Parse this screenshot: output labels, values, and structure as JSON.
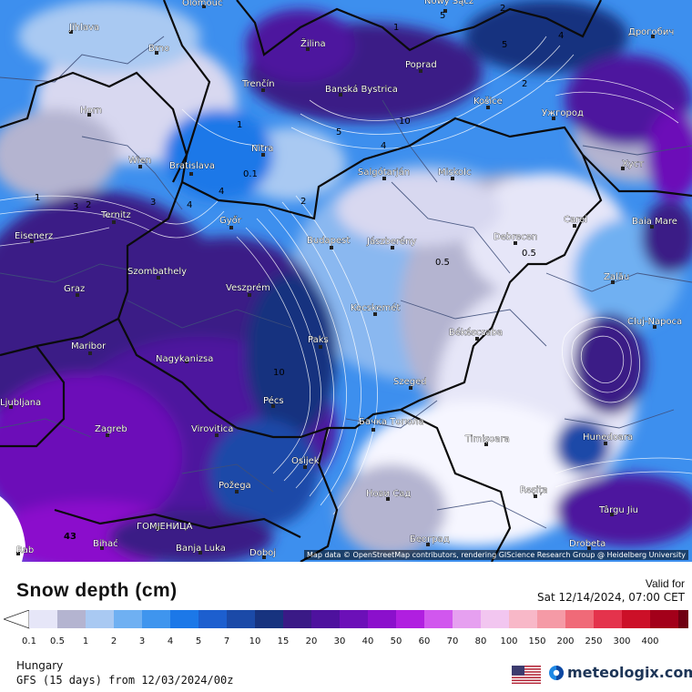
{
  "map": {
    "attribution": "Map data © OpenStreetMap contributors, rendering GIScience Research Group @ Heidelberg University",
    "cities": [
      {
        "name": "Olomouc"
      },
      {
        "name": "Nowy Sącz"
      },
      {
        "name": "Jihlava"
      },
      {
        "name": "Дрогобич"
      },
      {
        "name": "Brno"
      },
      {
        "name": "Žilina"
      },
      {
        "name": "Poprad"
      },
      {
        "name": "Trenčín"
      },
      {
        "name": "Banská Bystrica"
      },
      {
        "name": "Horn"
      },
      {
        "name": "Košice"
      },
      {
        "name": "Ужгород"
      },
      {
        "name": "Nitra"
      },
      {
        "name": "Wien"
      },
      {
        "name": "Bratislava"
      },
      {
        "name": "Salgótarján"
      },
      {
        "name": "Miskolc"
      },
      {
        "name": "Хуст"
      },
      {
        "name": "Ternitz"
      },
      {
        "name": "Győr"
      },
      {
        "name": "Carei"
      },
      {
        "name": "Baia Mare"
      },
      {
        "name": "Eisenerz"
      },
      {
        "name": "Budapest"
      },
      {
        "name": "Jászberény"
      },
      {
        "name": "Debrecen"
      },
      {
        "name": "Szombathely"
      },
      {
        "name": "Zalău"
      },
      {
        "name": "Graz"
      },
      {
        "name": "Veszprém"
      },
      {
        "name": "Kecskemét"
      },
      {
        "name": "Cluj-Napoca"
      },
      {
        "name": "Maribor"
      },
      {
        "name": "Paks"
      },
      {
        "name": "Békéscsaba"
      },
      {
        "name": "Nagykanizsa"
      },
      {
        "name": "Szeged"
      },
      {
        "name": "Pécs"
      },
      {
        "name": "Ljubljana"
      },
      {
        "name": "Zagreb"
      },
      {
        "name": "Virovitica"
      },
      {
        "name": "Бачка Топола"
      },
      {
        "name": "Timișoara"
      },
      {
        "name": "Hunedoara"
      },
      {
        "name": "Osijek"
      },
      {
        "name": "Požega"
      },
      {
        "name": "Нови Сад"
      },
      {
        "name": "Reșița"
      },
      {
        "name": "Târgu Jiu"
      },
      {
        "name": "ГОМЈЕНИЦА"
      },
      {
        "name": "Bihać"
      },
      {
        "name": "Banja Luka"
      },
      {
        "name": "Београд"
      },
      {
        "name": "Doboj"
      },
      {
        "name": "Drobeta"
      },
      {
        "name": "Rab"
      }
    ],
    "contour_labels": [
      "5",
      "2",
      "1",
      "4",
      "2",
      "5",
      "10",
      "4",
      "5",
      "2",
      "0.1",
      "1",
      "4",
      "3",
      "2",
      "3",
      "4",
      "1",
      "0.5",
      "0.5",
      "10",
      "43"
    ]
  },
  "legend": {
    "title": "Snow depth (cm)",
    "valid_label": "Valid for",
    "valid_date": "Sat 12/14/2024, 07:00 CET",
    "ticks": [
      "0.1",
      "0.5",
      "1",
      "2",
      "3",
      "4",
      "5",
      "7",
      "10",
      "15",
      "20",
      "30",
      "40",
      "50",
      "60",
      "70",
      "80",
      "100",
      "150",
      "200",
      "250",
      "300",
      "400"
    ],
    "colors": [
      "#e6e6f8",
      "#b4b4d0",
      "#a9c9f2",
      "#6fb0f2",
      "#3f95ee",
      "#1c78e8",
      "#1d5fcf",
      "#1b4aa8",
      "#17337f",
      "#3a1a86",
      "#4e129e",
      "#6c10b8",
      "#8b10cc",
      "#b01fe0",
      "#d157ee",
      "#e6a0f0",
      "#f2c6f0",
      "#f8b8c8",
      "#f59aa6",
      "#f06a78",
      "#e4334c",
      "#cc1028",
      "#a3001a",
      "#700012",
      "#3a0006"
    ]
  },
  "footer": {
    "region": "Hungary",
    "model": "GFS (15 days) from 12/03/2024/00z",
    "brand": "meteologix.com",
    "flag_icon": "us-flag-icon",
    "brand_icon": "meteologix-logo-icon"
  }
}
